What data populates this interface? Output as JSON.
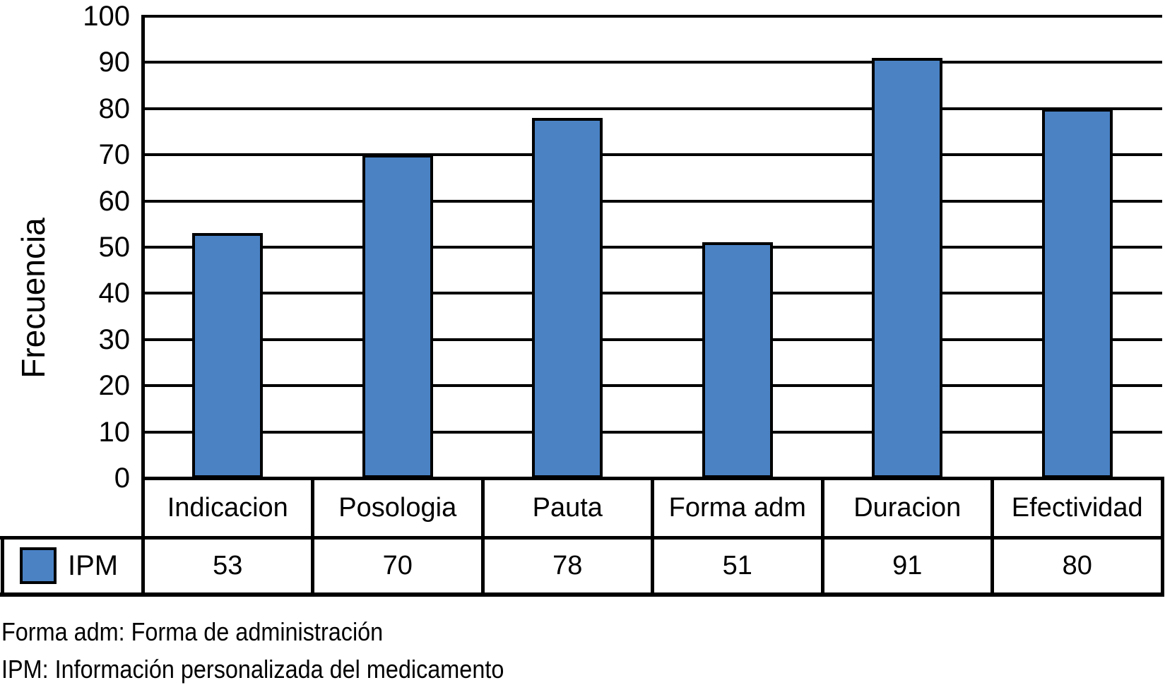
{
  "figure": {
    "ylabel": "Frecuencia",
    "legend_label": "IPM",
    "footnote_1": "Forma adm: Forma de administración",
    "footnote_2": "IPM: Información personalizada del medicamento"
  },
  "chart_data": {
    "type": "bar",
    "title": "",
    "xlabel": "",
    "ylabel": "Frecuencia",
    "categories": [
      "Indicacion",
      "Posologia",
      "Pauta",
      "Forma adm",
      "Duracion",
      "Efectividad"
    ],
    "series": [
      {
        "name": "IPM",
        "values": [
          53,
          70,
          78,
          51,
          91,
          80
        ]
      }
    ],
    "ylim": [
      0,
      100
    ],
    "yticks": [
      0,
      10,
      20,
      30,
      40,
      50,
      60,
      70,
      80,
      90,
      100
    ],
    "grid": true,
    "legend_position": "bottom table row",
    "bar_color": "#4a82c4",
    "bar_border_color": "#000000",
    "gridline_color": "#000000"
  }
}
